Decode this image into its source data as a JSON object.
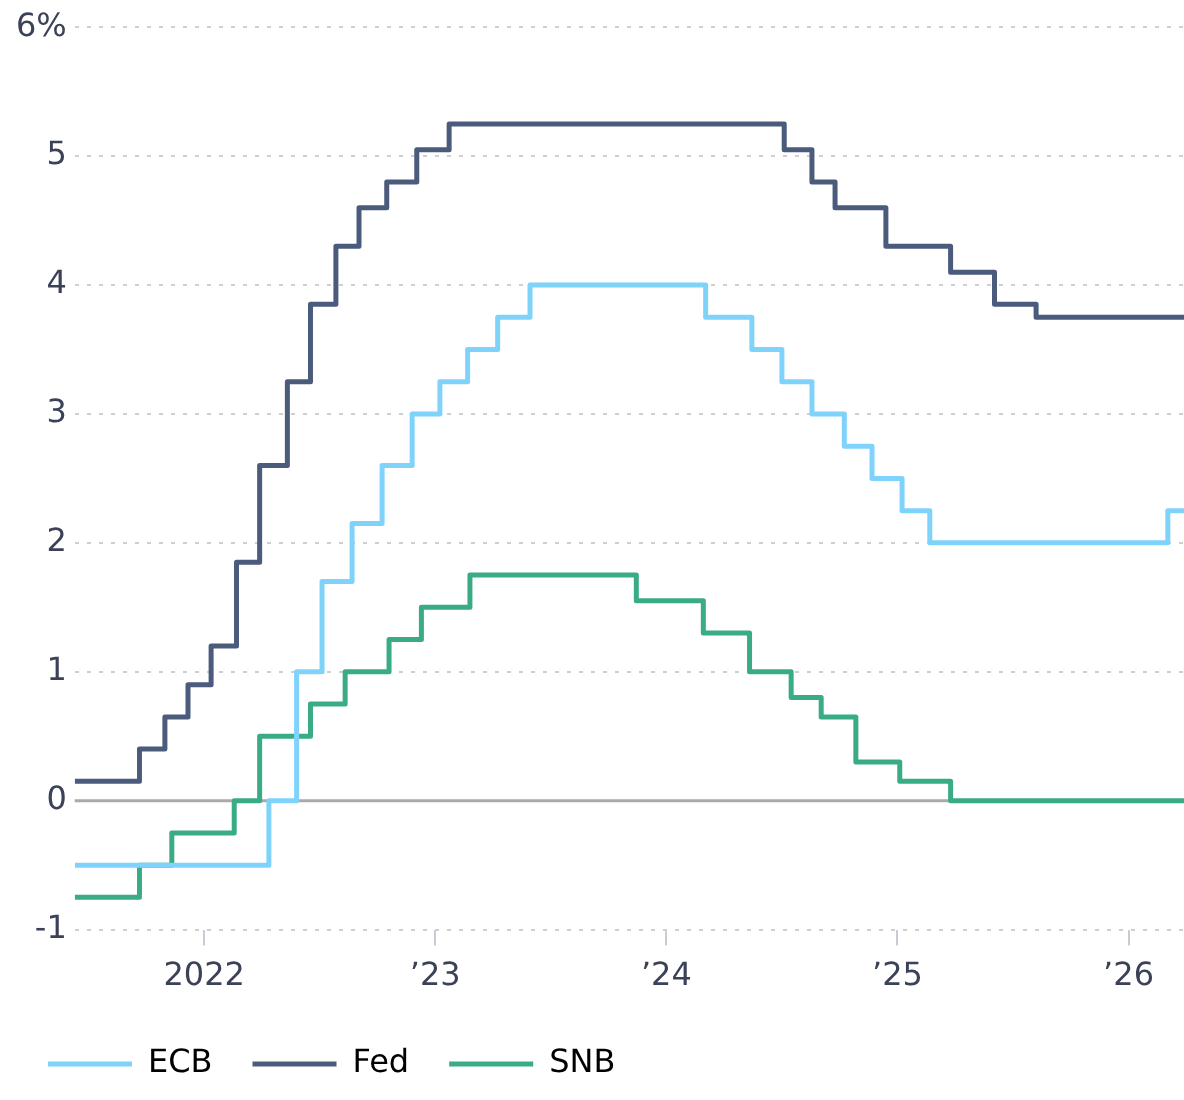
{
  "chart_data": {
    "type": "step",
    "xlim": [
      2021.44,
      2026.24
    ],
    "xticks": [
      {
        "value": 2022,
        "label": "2022"
      },
      {
        "value": 2023,
        "label": "’23"
      },
      {
        "value": 2024,
        "label": "’24"
      },
      {
        "value": 2025,
        "label": "’25"
      },
      {
        "value": 2026,
        "label": "’26"
      }
    ],
    "ylim": [
      -1,
      6
    ],
    "yticks": [
      -1,
      0,
      1,
      2,
      3,
      4,
      5,
      {
        "value": 6,
        "label": "6%"
      }
    ],
    "grid": "y",
    "legend": "bottom left",
    "marker": "none",
    "line_style": "solid",
    "ref_lines": [
      {
        "axis": "y",
        "value": 0,
        "color": "#aaaaaa"
      }
    ],
    "series": [
      {
        "name": "ECB",
        "color": "#7fd3fb",
        "x": [
          2021.44,
          2022.28,
          2022.4,
          2022.51,
          2022.64,
          2022.77,
          2022.9,
          2023.02,
          2023.14,
          2023.27,
          2023.41,
          2024.17,
          2024.37,
          2024.5,
          2024.63,
          2024.77,
          2024.89,
          2025.02,
          2025.14,
          2026.17,
          2026.24
        ],
        "values": [
          -0.5,
          0,
          1,
          1.7,
          2.15,
          2.6,
          3,
          3.25,
          3.5,
          3.75,
          4,
          3.75,
          3.5,
          3.25,
          3,
          2.75,
          2.5,
          2.25,
          2,
          2.25,
          2.25
        ]
      },
      {
        "name": "Fed",
        "color": "#4a5b7c",
        "x": [
          2021.44,
          2021.72,
          2021.83,
          2021.93,
          2022.03,
          2022.14,
          2022.24,
          2022.36,
          2022.46,
          2022.57,
          2022.67,
          2022.79,
          2022.92,
          2023.06,
          2024.51,
          2024.63,
          2024.73,
          2024.95,
          2025.23,
          2025.42,
          2025.6,
          2026.24
        ],
        "values": [
          0.15,
          0.4,
          0.65,
          0.9,
          1.2,
          1.85,
          2.6,
          3.25,
          3.85,
          4.3,
          4.6,
          4.8,
          5.05,
          5.25,
          5.05,
          4.8,
          4.6,
          4.3,
          4.1,
          3.85,
          3.75,
          3.75
        ]
      },
      {
        "name": "SNB",
        "color": "#3aab87",
        "x": [
          2021.44,
          2021.72,
          2021.86,
          2022.13,
          2022.24,
          2022.46,
          2022.61,
          2022.8,
          2022.94,
          2023.15,
          2023.87,
          2024.16,
          2024.36,
          2024.54,
          2024.67,
          2024.82,
          2025.01,
          2025.23,
          2026.24
        ],
        "values": [
          -0.75,
          -0.5,
          -0.25,
          0,
          0.5,
          0.75,
          1,
          1.25,
          1.5,
          1.75,
          1.55,
          1.3,
          1,
          0.8,
          0.65,
          0.3,
          0.15,
          0,
          0
        ]
      }
    ]
  }
}
